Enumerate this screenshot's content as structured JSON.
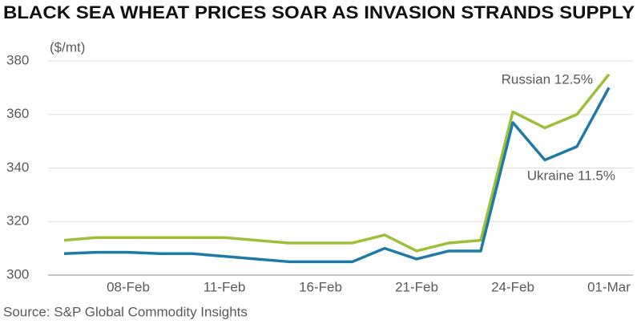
{
  "chart_data": {
    "type": "line",
    "title": "BLACK SEA WHEAT PRICES SOAR AS INVASION STRANDS SUPPLY",
    "y_label": "($/mt)",
    "source": "Source: S&P Global Commodity Insights",
    "categories": [
      null,
      null,
      "08-Feb",
      null,
      null,
      "11-Feb",
      null,
      null,
      "16-Feb",
      null,
      null,
      "21-Feb",
      null,
      null,
      "24-Feb",
      null,
      null,
      "01-Mar"
    ],
    "series": [
      {
        "name": "Russian 12.5%",
        "color": "#9dbf3a",
        "values": [
          313,
          314,
          314,
          314,
          314,
          314,
          313,
          312,
          312,
          312,
          315,
          309,
          312,
          313,
          361,
          355,
          360,
          375
        ]
      },
      {
        "name": "Ukraine 11.5%",
        "color": "#1f7ba6",
        "values": [
          308,
          308.5,
          308.5,
          308,
          308,
          307,
          306,
          305,
          305,
          305,
          310,
          306,
          309,
          309,
          357,
          343,
          348,
          370
        ]
      }
    ],
    "ylim": [
      300,
      380
    ],
    "yticks": [
      300,
      320,
      340,
      360,
      380
    ],
    "grid": true
  }
}
